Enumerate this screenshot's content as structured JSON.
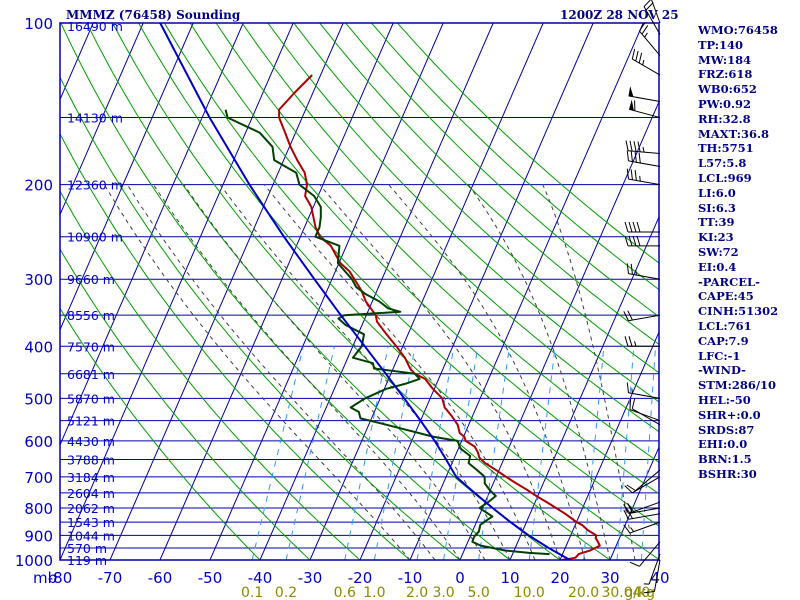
{
  "header": {
    "title": "MMMZ (76458) Sounding",
    "valid": "1200Z 28 NOV 25"
  },
  "colors": {
    "frame": "#0000aa",
    "isobar": "#0000aa",
    "isotherm": "#0000aa",
    "dry_adiabat": "#00a000",
    "moist_adiabat": "#404040",
    "mixing_ratio": "#3399ff",
    "temperature": "#b00000",
    "dewpoint": "#004000",
    "parcel": "#0000cc",
    "text": "#00008b",
    "pressure_labels": "#0000cc",
    "mixing_labels": "#8b8b00"
  },
  "chart_data": {
    "type": "line",
    "subtype": "skew-t log-p sounding",
    "title": "MMMZ (76458) Sounding",
    "time": "1200Z 28 NOV 25",
    "pressure_range_mb": [
      1000,
      100
    ],
    "temp_range_c": [
      -80,
      40
    ],
    "x_axis_unit_label": "mb",
    "x_ticks": [
      "-80",
      "-70",
      "-60",
      "-50",
      "-40",
      "-30",
      "-20",
      "-10",
      "0",
      "10",
      "20",
      "30",
      "40"
    ],
    "x_tick_values": [
      -80,
      -70,
      -60,
      -50,
      -40,
      -30,
      -20,
      -10,
      0,
      10,
      20,
      30,
      40
    ],
    "pressure_ticks": [
      1000,
      900,
      800,
      700,
      600,
      500,
      400,
      300,
      200,
      100
    ],
    "minor_isobars": [
      950,
      850,
      750,
      650,
      550,
      450,
      350,
      250,
      150
    ],
    "isotherms_c": [
      -160,
      -150,
      -140,
      -130,
      -120,
      -110,
      -100,
      -90,
      -80,
      -70,
      -60,
      -50,
      -40,
      -30,
      -20,
      -10,
      0,
      10,
      20,
      30,
      40
    ],
    "dry_adiabats_c": [
      -40,
      -30,
      -20,
      -10,
      0,
      10,
      20,
      30,
      40,
      50,
      60,
      70,
      80,
      90,
      100,
      110,
      120,
      130,
      140
    ],
    "moist_adiabats_c": [
      -10,
      -5,
      0,
      5,
      10,
      15,
      20,
      25,
      30,
      35
    ],
    "mixing_ratio_gkg": [
      0.1,
      0.2,
      0.6,
      1.0,
      2.0,
      3.0,
      5.0,
      10.0,
      20.0,
      30.0,
      40.0
    ],
    "mixing_ratio_labels": [
      "0.1",
      "0.2",
      "0.6",
      "1.0",
      "2.0",
      "3.0",
      "5.0",
      "10.0",
      "20.0",
      "30.0",
      "40"
    ],
    "mixing_ratio_unit": "g/kg",
    "height_labels": [
      {
        "p": 1000,
        "label": "119 m"
      },
      {
        "p": 950,
        "label": "570 m"
      },
      {
        "p": 900,
        "label": "1044 m"
      },
      {
        "p": 850,
        "label": "1543 m"
      },
      {
        "p": 800,
        "label": "2062 m"
      },
      {
        "p": 750,
        "label": "2604 m"
      },
      {
        "p": 700,
        "label": "3184 m"
      },
      {
        "p": 650,
        "label": "3788 m"
      },
      {
        "p": 600,
        "label": "4430 m"
      },
      {
        "p": 550,
        "label": "5121 m"
      },
      {
        "p": 500,
        "label": "5870 m"
      },
      {
        "p": 450,
        "label": "6681 m"
      },
      {
        "p": 400,
        "label": "7570 m"
      },
      {
        "p": 350,
        "label": "8556 m"
      },
      {
        "p": 300,
        "label": "9660 m"
      },
      {
        "p": 250,
        "label": "10900 m"
      },
      {
        "p": 200,
        "label": "12360 m"
      },
      {
        "p": 150,
        "label": "14130 m"
      },
      {
        "p": 100,
        "label": "16490 m"
      }
    ],
    "series": [
      {
        "name": "temperature",
        "p": [
          1000,
          997,
          990,
          975,
          960,
          940,
          925,
          910,
          900,
          880,
          860,
          850,
          820,
          800,
          780,
          760,
          740,
          720,
          700,
          680,
          660,
          645,
          630,
          615,
          600,
          590,
          580,
          560,
          540,
          520,
          500,
          480,
          460,
          450,
          440,
          420,
          400,
          380,
          360,
          350,
          330,
          315,
          300,
          290,
          280,
          270,
          260,
          250,
          240,
          220,
          210,
          200,
          190,
          180,
          170,
          160,
          150,
          145,
          135,
          125
        ],
        "t": [
          20.3,
          21.2,
          22.9,
          23.2,
          25.2,
          26.7,
          26.0,
          25.2,
          25.1,
          23.0,
          21.3,
          20.0,
          17.0,
          14.7,
          12.3,
          9.7,
          7.3,
          4.6,
          2.0,
          -0.6,
          -3.4,
          -5.0,
          -5.8,
          -6.9,
          -9.2,
          -9.8,
          -11.1,
          -12.2,
          -14.1,
          -16.3,
          -17.6,
          -20.3,
          -22.7,
          -25.2,
          -26.6,
          -28.6,
          -31.3,
          -34.3,
          -37.3,
          -38.1,
          -41.3,
          -43.1,
          -45.5,
          -47.2,
          -49.7,
          -51.4,
          -53.1,
          -56.1,
          -57.8,
          -60.4,
          -62.6,
          -63.2,
          -64.7,
          -67.3,
          -69.8,
          -72.1,
          -74.6,
          -75.3,
          -73.7,
          -71.7
        ]
      },
      {
        "name": "dewpoint",
        "p": [
          975,
          970,
          960,
          940,
          925,
          910,
          900,
          885,
          860,
          850,
          830,
          800,
          780,
          760,
          740,
          720,
          700,
          680,
          660,
          640,
          620,
          600,
          590,
          560,
          545,
          530,
          520,
          500,
          480,
          470,
          460,
          450,
          440,
          430,
          420,
          400,
          380,
          365,
          355,
          350,
          345,
          340,
          330,
          320,
          310,
          300,
          280,
          260,
          250,
          240,
          230,
          220,
          210,
          200,
          190,
          180,
          170,
          160,
          150,
          145
        ],
        "td": [
          17.4,
          13.2,
          8.2,
          2.9,
          0.9,
          0.8,
          0.9,
          1.3,
          1.0,
          1.5,
          2.7,
          -0.6,
          0.6,
          1.6,
          -0.2,
          -1.7,
          -2.3,
          -4.4,
          -6.7,
          -7.0,
          -9.6,
          -10.8,
          -15.9,
          -26.4,
          -32.2,
          -33.1,
          -35.1,
          -33.0,
          -29.6,
          -26.3,
          -23.8,
          -25.2,
          -33.8,
          -34.5,
          -39.0,
          -38.2,
          -38.8,
          -43.3,
          -45.3,
          -44.4,
          -33.5,
          -36.2,
          -38.6,
          -41.9,
          -44.5,
          -46.0,
          -50.2,
          -51.4,
          -57.0,
          -57.0,
          -57.6,
          -58.5,
          -60.8,
          -64.7,
          -66.4,
          -71.9,
          -73.4,
          -77.2,
          -84.9,
          -86.0
        ]
      },
      {
        "name": "parcel",
        "p": [
          1000,
          950,
          900,
          850,
          800,
          750,
          700,
          650,
          600,
          550,
          500,
          450,
          400,
          350,
          300,
          250,
          200,
          150,
          100
        ],
        "t": [
          22.0,
          16.7,
          11.6,
          6.8,
          2.0,
          -2.9,
          -8.0,
          -11.5,
          -15.4,
          -20.0,
          -25.2,
          -31.0,
          -37.6,
          -45.1,
          -53.5,
          -63.3,
          -74.7,
          -88.5,
          -106.6
        ]
      }
    ],
    "wind_barbs": [
      {
        "p": 1000,
        "dir": 190,
        "spd": 10
      },
      {
        "p": 975,
        "dir": 200,
        "spd": 5
      },
      {
        "p": 925,
        "dir": 220,
        "spd": 10
      },
      {
        "p": 850,
        "dir": 250,
        "spd": 15
      },
      {
        "p": 820,
        "dir": 260,
        "spd": 15
      },
      {
        "p": 800,
        "dir": 260,
        "spd": 20
      },
      {
        "p": 780,
        "dir": 250,
        "spd": 20
      },
      {
        "p": 700,
        "dir": 240,
        "spd": 10
      },
      {
        "p": 680,
        "dir": 230,
        "spd": 10
      },
      {
        "p": 560,
        "dir": 300,
        "spd": 10
      },
      {
        "p": 550,
        "dir": 290,
        "spd": 10
      },
      {
        "p": 500,
        "dir": 280,
        "spd": 15
      },
      {
        "p": 400,
        "dir": 270,
        "spd": 25
      },
      {
        "p": 350,
        "dir": 260,
        "spd": 20
      },
      {
        "p": 300,
        "dir": 280,
        "spd": 25
      },
      {
        "p": 260,
        "dir": 270,
        "spd": 40
      },
      {
        "p": 245,
        "dir": 270,
        "spd": 40
      },
      {
        "p": 200,
        "dir": 280,
        "spd": 35
      },
      {
        "p": 185,
        "dir": 280,
        "spd": 40
      },
      {
        "p": 175,
        "dir": 275,
        "spd": 45
      },
      {
        "p": 150,
        "dir": 285,
        "spd": 60
      },
      {
        "p": 140,
        "dir": 280,
        "spd": 50
      },
      {
        "p": 125,
        "dir": 300,
        "spd": 35
      },
      {
        "p": 115,
        "dir": 320,
        "spd": 25
      },
      {
        "p": 105,
        "dir": 330,
        "spd": 20
      },
      {
        "p": 100,
        "dir": 340,
        "spd": 15
      }
    ]
  },
  "indices": [
    "WMO:76458",
    "TP:140",
    "MW:184",
    "FRZ:618",
    "WB0:652",
    "PW:0.92",
    "RH:32.8",
    "MAXT:36.8",
    "TH:5751",
    "L57:5.8",
    "LCL:969",
    "LI:6.0",
    "SI:6.3",
    "TT:39",
    "KI:23",
    "SW:72",
    "EI:0.4",
    "-PARCEL-",
    "CAPE:45",
    "CINH:51302",
    "LCL:761",
    "CAP:7.9",
    "LFC:-1",
    "-WIND-",
    "STM:286/10",
    "HEL:-50",
    "SHR+:0.0",
    "SRDS:87",
    "EHI:0.0",
    "BRN:1.5",
    "BSHR:30"
  ]
}
